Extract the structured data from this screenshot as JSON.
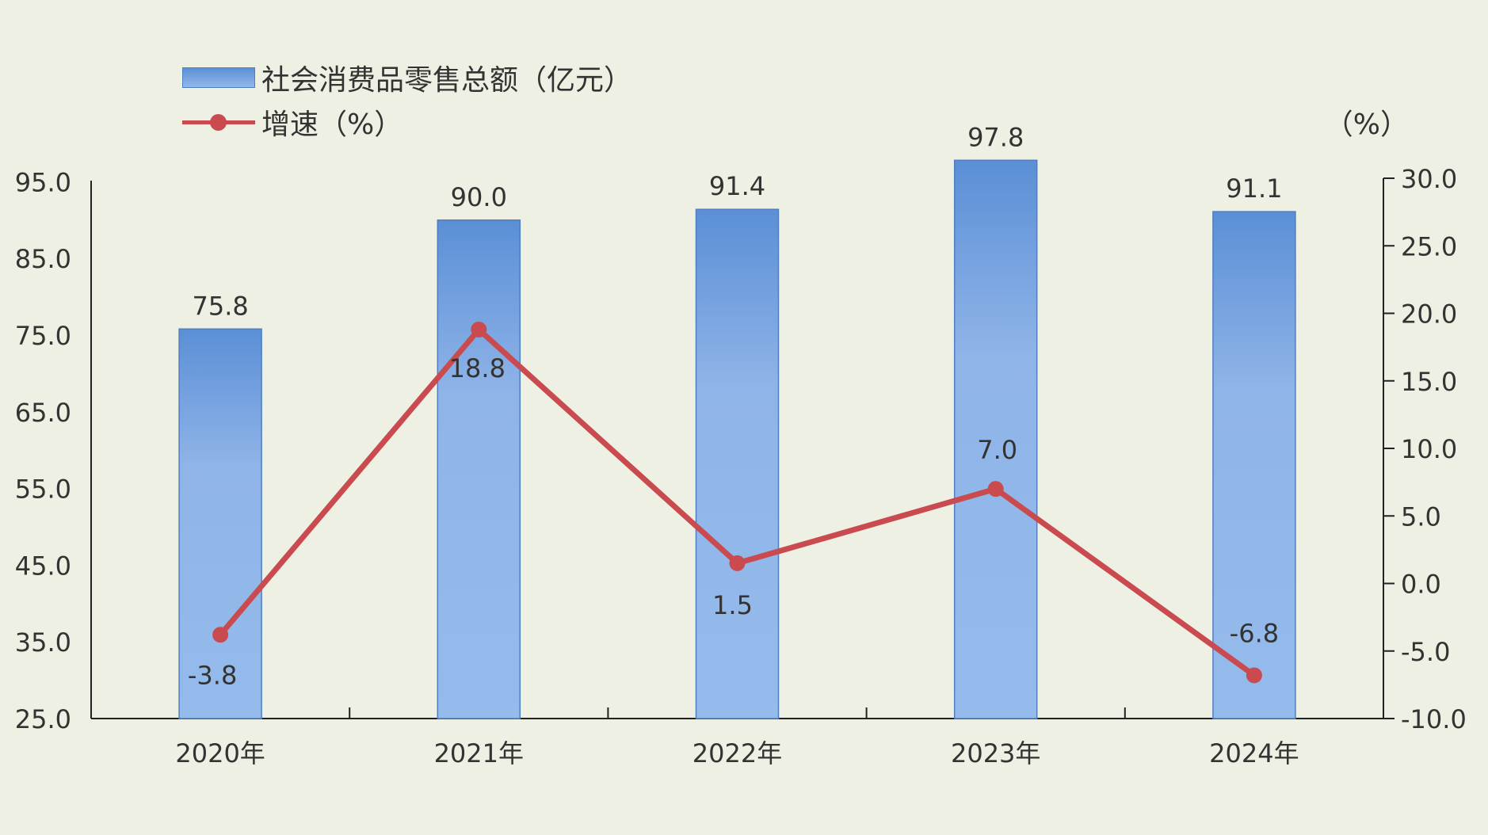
{
  "chart_data": {
    "type": "bar",
    "categories": [
      "2020年",
      "2021年",
      "2022年",
      "2023年",
      "2024年"
    ],
    "series": [
      {
        "name": "社会消费品零售总额（亿元）",
        "type": "bar",
        "axis": "left",
        "values": [
          75.8,
          90.0,
          91.4,
          97.8,
          91.1
        ],
        "labels": [
          "75.8",
          "90.0",
          "91.4",
          "97.8",
          "91.1"
        ]
      },
      {
        "name": "增速（%）",
        "type": "line",
        "axis": "right",
        "values": [
          -3.8,
          18.8,
          1.5,
          7.0,
          -6.8
        ],
        "labels": [
          "-3.8",
          "18.8",
          "1.5",
          "7.0",
          "-6.8"
        ]
      }
    ],
    "y_left": {
      "min": 25,
      "max": 100,
      "ticks": [
        "25.0",
        "35.0",
        "45.0",
        "55.0",
        "65.0",
        "75.0",
        "85.0",
        "95.0"
      ]
    },
    "y_right": {
      "min": -10,
      "max": 30,
      "ticks": [
        "-10.0",
        "-5.0",
        "0.0",
        "5.0",
        "10.0",
        "15.0",
        "20.0",
        "25.0",
        "30.0"
      ],
      "unit": "（%）"
    },
    "legend_position": "top-left",
    "grid": false,
    "colors": {
      "bar_top": "#5b8fd6",
      "bar_bottom": "#92b8ea",
      "line": "#c94a4f",
      "background": "#edf0e2"
    }
  }
}
